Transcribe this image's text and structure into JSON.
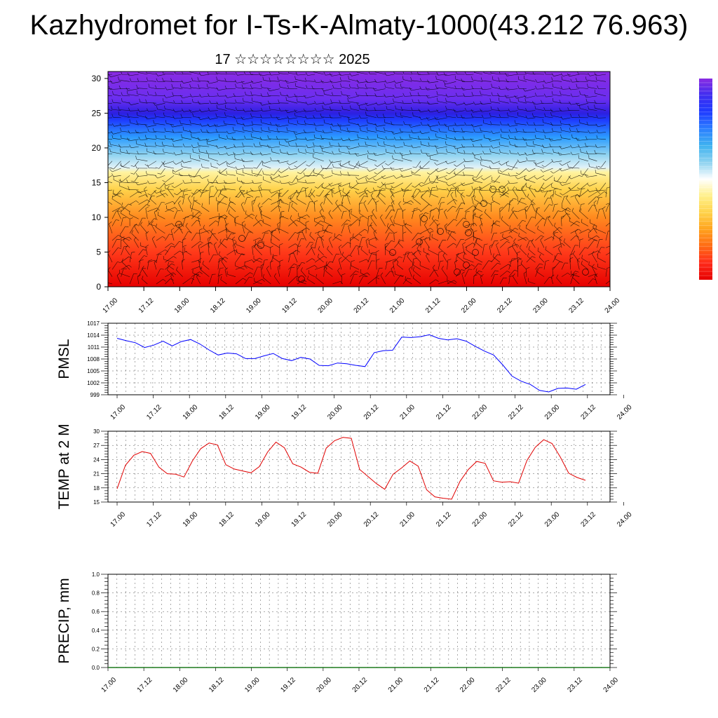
{
  "title": "Kazhydromet for I-Ts-K-Almaty-1000(43.212 76.963)",
  "subtitle": "17 ☆☆☆☆☆☆☆☆ 2025",
  "colorbar": {
    "colors": [
      "#8a2be2",
      "#3f2df0",
      "#1e3cff",
      "#2c7fff",
      "#3fb2f0",
      "#8fd3f0",
      "#ffffff",
      "#fff08a",
      "#ffd24a",
      "#ffa21e",
      "#ff6a14",
      "#ff2a1a",
      "#e60000"
    ]
  },
  "chart_data": [
    {
      "type": "heatmap",
      "title": "",
      "xlabel": "",
      "ylabel": "",
      "x_ticks": [
        "17.00",
        "17.12",
        "18.00",
        "18.12",
        "19.00",
        "19.12",
        "20.00",
        "20.12",
        "21.00",
        "21.12",
        "22.00",
        "22.12",
        "23.00",
        "23.12",
        "24.00"
      ],
      "ylim": [
        0,
        31
      ],
      "y_ticks": [
        0,
        5,
        10,
        15,
        20,
        25,
        30
      ],
      "field_bands": [
        {
          "y": 0,
          "color": "#e60000"
        },
        {
          "y": 5,
          "color": "#ff3a1a"
        },
        {
          "y": 10,
          "color": "#ff8a1e"
        },
        {
          "y": 14,
          "color": "#ffd24a"
        },
        {
          "y": 16.5,
          "color": "#fff3a0"
        },
        {
          "y": 17.2,
          "color": "#dff1f8"
        },
        {
          "y": 19,
          "color": "#8fd3f0"
        },
        {
          "y": 21.5,
          "color": "#2c9cff"
        },
        {
          "y": 24,
          "color": "#1e3cff"
        },
        {
          "y": 25,
          "color": "#2d1fe0"
        },
        {
          "y": 27,
          "color": "#6a2ef0"
        },
        {
          "y": 31,
          "color": "#8a2be2"
        }
      ],
      "overlay": "wind barbs"
    },
    {
      "type": "line",
      "ylabel": "PMSL",
      "ylim": [
        999,
        1017
      ],
      "y_ticks": [
        999,
        1002,
        1005,
        1008,
        1011,
        1014,
        1017
      ],
      "x_ticks": [
        "17.00",
        "17.12",
        "18.00",
        "18.12",
        "19.00",
        "19.12",
        "20.00",
        "20.12",
        "21.00",
        "21.12",
        "22.00",
        "22.12",
        "23.00",
        "23.12",
        "24.00"
      ],
      "xlim": [
        0,
        42
      ],
      "series": [
        {
          "color": "#0000ff",
          "x": [
            0,
            1,
            2,
            3,
            4,
            5,
            6,
            7,
            8,
            9,
            10,
            11,
            12,
            13,
            14,
            15,
            16,
            17,
            18,
            19,
            20,
            21,
            22,
            23,
            24,
            25,
            26,
            27,
            28,
            29,
            30,
            31,
            32,
            33,
            34,
            35,
            36,
            37,
            38,
            39,
            40
          ],
          "values": [
            1013.2,
            1012.6,
            1012.1,
            1010.9,
            1011.5,
            1012.5,
            1011.3,
            1012.4,
            1012.9,
            1011.8,
            1010.3,
            1009.0,
            1009.5,
            1009.3,
            1008.1,
            1008.1,
            1008.8,
            1009.4,
            1008.1,
            1007.6,
            1008.4,
            1008.0,
            1006.4,
            1006.3,
            1007.0,
            1006.8,
            1006.4,
            1006.1,
            1009.6,
            1010.1,
            1010.2,
            1013.5,
            1013.4,
            1013.6,
            1014.1,
            1013.2,
            1012.8,
            1013.1,
            1012.5,
            1011.2,
            1010.0
          ]
        }
      ],
      "series_b": [
        1009.0,
        1006.5,
        1003.7,
        1002.4,
        1001.6,
        1000.1,
        999.7,
        1000.6,
        1000.7,
        1000.4,
        1001.6
      ]
    },
    {
      "type": "line",
      "ylabel": "TEMP at 2 M",
      "ylim": [
        15,
        30
      ],
      "y_ticks": [
        15,
        18,
        21,
        24,
        27,
        30
      ],
      "x_ticks": [
        "17.00",
        "17.12",
        "18.00",
        "18.12",
        "19.00",
        "19.12",
        "20.00",
        "20.12",
        "21.00",
        "21.12",
        "22.00",
        "22.12",
        "23.00",
        "23.12",
        "24.00"
      ],
      "xlim": [
        0,
        42
      ],
      "series": [
        {
          "color": "#e00000",
          "values": [
            17.8,
            22.8,
            24.9,
            25.7,
            25.3,
            22.4,
            21.0,
            20.9,
            20.3,
            23.7,
            26.3,
            27.5,
            27.1,
            22.9,
            22.0,
            21.6,
            21.2,
            22.5,
            25.6,
            27.7,
            26.5,
            23.1,
            22.4,
            21.3,
            21.1,
            26.4,
            28.0,
            28.7,
            28.5,
            21.9,
            20.4,
            18.9,
            17.7,
            20.9,
            22.2,
            23.7,
            22.6,
            17.6,
            16.1,
            15.8,
            15.6,
            19.4,
            21.9,
            23.6,
            23.2,
            19.5,
            19.2,
            19.3,
            19.0,
            23.8,
            26.6,
            28.2,
            27.4,
            24.5,
            21.1,
            20.2,
            19.6
          ]
        }
      ]
    },
    {
      "type": "line",
      "ylabel": "PRECIP, mm",
      "ylim": [
        0,
        1
      ],
      "y_ticks": [
        "0.0",
        "0.2",
        "0.4",
        "0.6",
        "0.8",
        "1.0"
      ],
      "x_ticks": [
        "17.00",
        "17.12",
        "18.00",
        "18.12",
        "19.00",
        "19.12",
        "20.00",
        "20.12",
        "21.00",
        "21.12",
        "22.00",
        "22.12",
        "23.00",
        "23.12",
        "24.00"
      ],
      "series": [
        {
          "color": "#1f7a1f",
          "values": [
            0,
            0,
            0,
            0,
            0,
            0,
            0,
            0,
            0,
            0,
            0,
            0,
            0,
            0,
            0
          ]
        }
      ]
    }
  ]
}
